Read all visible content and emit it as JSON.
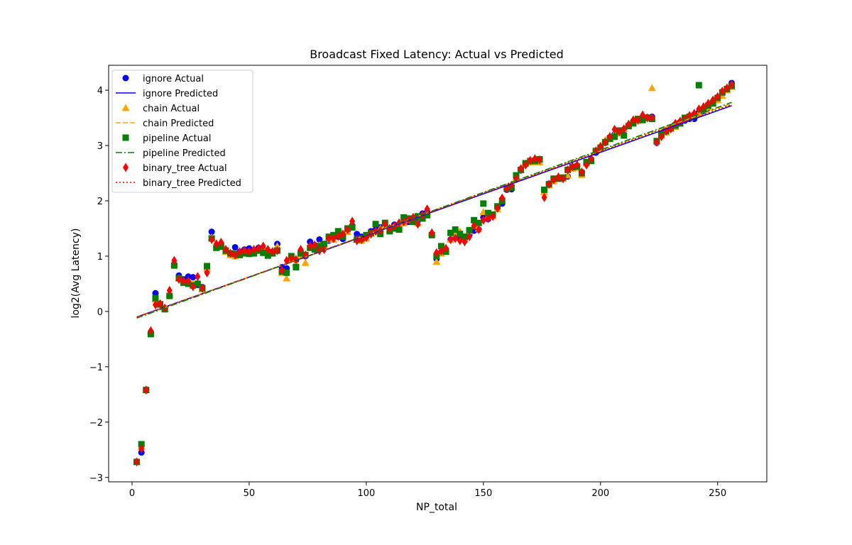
{
  "chart_data": {
    "type": "scatter",
    "title": "Broadcast Fixed Latency: Actual vs Predicted",
    "xlabel": "NP_total",
    "ylabel": "log2(Avg Latency)",
    "xlim": [
      -10,
      271
    ],
    "ylim": [
      -3.08,
      4.45
    ],
    "xticks": [
      0,
      50,
      100,
      150,
      200,
      250
    ],
    "yticks": [
      -3,
      -2,
      -1,
      0,
      1,
      2,
      3,
      4
    ],
    "xtick_labels": [
      "0",
      "50",
      "100",
      "150",
      "200",
      "250"
    ],
    "ytick_labels": [
      "−3",
      "−2",
      "−1",
      "0",
      "1",
      "2",
      "3",
      "4"
    ],
    "grid": false,
    "legend_position": "upper-left",
    "legend": [
      {
        "label": "ignore Actual",
        "marker": "circle",
        "color": "#0000ff"
      },
      {
        "label": "ignore Predicted",
        "line": "solid",
        "color": "#0000ff"
      },
      {
        "label": "chain Actual",
        "marker": "triangle",
        "color": "#ffa500"
      },
      {
        "label": "chain Predicted",
        "line": "dashed",
        "color": "#ffa500"
      },
      {
        "label": "pipeline Actual",
        "marker": "square",
        "color": "#008000"
      },
      {
        "label": "pipeline Predicted",
        "line": "dashdot",
        "color": "#008000"
      },
      {
        "label": "binary_tree Actual",
        "marker": "diamond",
        "color": "#ff0000"
      },
      {
        "label": "binary_tree Predicted",
        "line": "dotted",
        "color": "#ff0000"
      }
    ],
    "predicted_lines": [
      {
        "name": "ignore Predicted",
        "color": "#0000ff",
        "style": "solid",
        "x": [
          2,
          256
        ],
        "y": [
          -0.1,
          3.72
        ]
      },
      {
        "name": "chain Predicted",
        "color": "#ffa500",
        "style": "dashed",
        "x": [
          2,
          256
        ],
        "y": [
          -0.11,
          3.76
        ]
      },
      {
        "name": "pipeline Predicted",
        "color": "#008000",
        "style": "dashdot",
        "x": [
          2,
          256
        ],
        "y": [
          -0.12,
          3.78
        ]
      },
      {
        "name": "binary_tree Predicted",
        "color": "#ff0000",
        "style": "dotted",
        "x": [
          2,
          256
        ],
        "y": [
          -0.1,
          3.74
        ]
      }
    ],
    "series": [
      {
        "name": "ignore Actual",
        "marker": "circle",
        "color": "#0000ff",
        "x": [
          2,
          4,
          6,
          8,
          10,
          12,
          14,
          16,
          18,
          20,
          22,
          24,
          26,
          28,
          30,
          32,
          34,
          36,
          38,
          40,
          42,
          44,
          46,
          48,
          50,
          52,
          54,
          56,
          58,
          60,
          62,
          64,
          66,
          68,
          70,
          72,
          74,
          76,
          78,
          80,
          82,
          84,
          86,
          88,
          90,
          92,
          94,
          96,
          98,
          100,
          102,
          104,
          106,
          108,
          110,
          112,
          114,
          116,
          118,
          120,
          122,
          124,
          126,
          128,
          130,
          132,
          134,
          136,
          138,
          140,
          142,
          144,
          146,
          148,
          150,
          152,
          154,
          156,
          158,
          160,
          162,
          164,
          166,
          168,
          170,
          172,
          174,
          176,
          178,
          180,
          182,
          184,
          186,
          188,
          190,
          192,
          194,
          196,
          198,
          200,
          202,
          204,
          206,
          208,
          210,
          212,
          214,
          216,
          218,
          220,
          222,
          224,
          226,
          228,
          230,
          232,
          234,
          236,
          238,
          240,
          242,
          244,
          246,
          248,
          250,
          252,
          254,
          256
        ],
        "y": [
          -2.72,
          -2.55,
          -1.42,
          -0.38,
          0.33,
          0.13,
          0.05,
          0.28,
          0.85,
          0.65,
          0.58,
          0.63,
          0.62,
          0.48,
          0.44,
          0.75,
          1.44,
          1.18,
          1.22,
          1.1,
          1.05,
          1.16,
          1.08,
          1.12,
          1.14,
          1.1,
          1.15,
          1.12,
          1.06,
          1.08,
          1.22,
          0.8,
          0.78,
          0.95,
          0.93,
          1.08,
          1.0,
          1.26,
          1.2,
          1.3,
          1.18,
          1.28,
          1.38,
          1.35,
          1.31,
          1.46,
          1.55,
          1.4,
          1.35,
          1.38,
          1.45,
          1.48,
          1.52,
          1.55,
          1.5,
          1.57,
          1.56,
          1.6,
          1.62,
          1.66,
          1.64,
          1.77,
          1.8,
          1.4,
          0.95,
          1.07,
          1.12,
          1.3,
          1.38,
          1.31,
          1.3,
          1.38,
          1.46,
          1.48,
          1.7,
          1.67,
          1.72,
          1.87,
          1.95,
          2.2,
          2.21,
          2.42,
          2.55,
          2.66,
          2.7,
          2.72,
          2.73,
          2.2,
          2.31,
          2.36,
          2.41,
          2.4,
          2.44,
          2.6,
          2.62,
          2.52,
          2.7,
          2.75,
          2.87,
          2.95,
          3.05,
          3.15,
          3.2,
          3.25,
          3.29,
          3.36,
          3.44,
          3.46,
          3.5,
          3.51,
          3.52,
          3.05,
          3.22,
          3.25,
          3.33,
          3.35,
          3.42,
          3.45,
          3.48,
          3.48,
          3.6,
          3.62,
          3.7,
          3.78,
          3.86,
          3.94,
          4.03,
          4.13
        ]
      },
      {
        "name": "chain Actual",
        "marker": "triangle",
        "color": "#ffa500",
        "x": [
          2,
          4,
          6,
          8,
          10,
          12,
          14,
          16,
          18,
          20,
          22,
          24,
          26,
          28,
          30,
          32,
          34,
          36,
          38,
          40,
          42,
          44,
          46,
          48,
          50,
          52,
          54,
          56,
          58,
          60,
          62,
          64,
          66,
          68,
          70,
          72,
          74,
          76,
          78,
          80,
          82,
          84,
          86,
          88,
          90,
          92,
          94,
          96,
          98,
          100,
          102,
          104,
          106,
          108,
          110,
          112,
          114,
          116,
          118,
          120,
          122,
          124,
          126,
          128,
          130,
          132,
          134,
          136,
          138,
          140,
          142,
          144,
          146,
          148,
          150,
          152,
          154,
          156,
          158,
          160,
          162,
          164,
          166,
          168,
          170,
          172,
          174,
          176,
          178,
          180,
          182,
          184,
          186,
          188,
          190,
          192,
          194,
          196,
          198,
          200,
          202,
          204,
          206,
          208,
          210,
          212,
          214,
          216,
          218,
          220,
          222,
          224,
          226,
          228,
          230,
          232,
          234,
          236,
          238,
          240,
          242,
          244,
          246,
          248,
          250,
          252,
          254,
          256
        ],
        "y": [
          -2.72,
          -2.45,
          -1.42,
          -0.36,
          0.22,
          0.12,
          0.05,
          0.3,
          0.86,
          0.6,
          0.55,
          0.55,
          0.5,
          0.5,
          0.4,
          0.78,
          1.34,
          1.2,
          1.22,
          1.08,
          1.02,
          1.0,
          1.08,
          1.1,
          1.06,
          1.08,
          1.12,
          1.14,
          1.1,
          1.1,
          1.18,
          0.7,
          0.6,
          0.95,
          0.88,
          1.02,
          0.88,
          1.15,
          1.18,
          1.2,
          1.18,
          1.3,
          1.3,
          1.38,
          1.4,
          1.44,
          1.55,
          1.3,
          1.28,
          1.32,
          1.4,
          1.45,
          1.5,
          1.55,
          1.48,
          1.52,
          1.56,
          1.6,
          1.65,
          1.67,
          1.6,
          1.7,
          1.8,
          1.42,
          0.9,
          1.05,
          1.08,
          1.3,
          1.4,
          1.45,
          1.3,
          1.45,
          1.55,
          1.5,
          1.8,
          1.72,
          1.72,
          1.85,
          2.0,
          2.25,
          2.25,
          2.42,
          2.56,
          2.67,
          2.7,
          2.7,
          2.7,
          2.16,
          2.28,
          2.36,
          2.4,
          2.4,
          2.46,
          2.58,
          2.6,
          2.47,
          2.68,
          2.74,
          2.92,
          3.0,
          3.1,
          3.12,
          3.22,
          3.22,
          3.3,
          3.4,
          3.46,
          3.45,
          3.52,
          3.5,
          4.04,
          3.07,
          3.18,
          3.24,
          3.3,
          3.34,
          3.4,
          3.48,
          3.5,
          3.54,
          3.58,
          3.64,
          3.7,
          3.76,
          3.82,
          3.9,
          4.0,
          4.06
        ]
      },
      {
        "name": "pipeline Actual",
        "marker": "square",
        "color": "#008000",
        "x": [
          2,
          4,
          6,
          8,
          10,
          12,
          14,
          16,
          18,
          20,
          22,
          24,
          26,
          28,
          30,
          32,
          34,
          36,
          38,
          40,
          42,
          44,
          46,
          48,
          50,
          52,
          54,
          56,
          58,
          60,
          62,
          64,
          66,
          68,
          70,
          72,
          74,
          76,
          78,
          80,
          82,
          84,
          86,
          88,
          90,
          92,
          94,
          96,
          98,
          100,
          102,
          104,
          106,
          108,
          110,
          112,
          114,
          116,
          118,
          120,
          122,
          124,
          126,
          128,
          130,
          132,
          134,
          136,
          138,
          140,
          142,
          144,
          146,
          148,
          150,
          152,
          154,
          156,
          158,
          160,
          162,
          164,
          166,
          168,
          170,
          172,
          174,
          176,
          178,
          180,
          182,
          184,
          186,
          188,
          190,
          192,
          194,
          196,
          198,
          200,
          202,
          204,
          206,
          208,
          210,
          212,
          214,
          216,
          218,
          220,
          222,
          224,
          226,
          228,
          230,
          232,
          234,
          236,
          238,
          240,
          242,
          244,
          246,
          248,
          250,
          252,
          254,
          256
        ],
        "y": [
          -2.72,
          -2.4,
          -1.42,
          -0.41,
          0.24,
          0.13,
          0.04,
          0.28,
          0.83,
          0.6,
          0.52,
          0.5,
          0.47,
          0.5,
          0.42,
          0.82,
          1.32,
          1.15,
          1.17,
          1.1,
          1.05,
          1.04,
          1.02,
          1.05,
          1.04,
          1.05,
          1.1,
          1.06,
          1.01,
          1.05,
          1.1,
          0.72,
          0.7,
          1.0,
          0.8,
          1.05,
          1.02,
          1.15,
          1.12,
          1.18,
          1.22,
          1.35,
          1.38,
          1.45,
          1.35,
          1.5,
          1.52,
          1.3,
          1.32,
          1.38,
          1.42,
          1.58,
          1.4,
          1.6,
          1.45,
          1.5,
          1.48,
          1.7,
          1.68,
          1.62,
          1.72,
          1.68,
          1.74,
          1.38,
          1.0,
          1.18,
          1.08,
          1.42,
          1.48,
          1.4,
          1.35,
          1.47,
          1.65,
          1.6,
          1.95,
          1.78,
          1.75,
          1.9,
          2.0,
          2.22,
          2.24,
          2.46,
          2.56,
          2.68,
          2.72,
          2.72,
          2.75,
          2.2,
          2.3,
          2.4,
          2.4,
          2.42,
          2.56,
          2.61,
          2.62,
          2.5,
          2.7,
          2.72,
          2.9,
          2.96,
          3.06,
          3.12,
          3.16,
          3.27,
          3.18,
          3.35,
          3.4,
          3.48,
          3.46,
          3.5,
          3.48,
          3.08,
          3.2,
          3.26,
          3.32,
          3.36,
          3.4,
          3.5,
          3.52,
          3.54,
          4.09,
          3.65,
          3.72,
          3.76,
          3.86,
          3.96,
          4.02,
          4.08
        ]
      },
      {
        "name": "binary_tree Actual",
        "marker": "diamond",
        "color": "#ff0000",
        "x": [
          2,
          4,
          6,
          8,
          10,
          12,
          14,
          16,
          18,
          20,
          22,
          24,
          26,
          28,
          30,
          32,
          34,
          36,
          38,
          40,
          42,
          44,
          46,
          48,
          50,
          52,
          54,
          56,
          58,
          60,
          62,
          64,
          66,
          68,
          70,
          72,
          74,
          76,
          78,
          80,
          82,
          84,
          86,
          88,
          90,
          92,
          94,
          96,
          98,
          100,
          102,
          104,
          106,
          108,
          110,
          112,
          114,
          116,
          118,
          120,
          122,
          124,
          126,
          128,
          130,
          132,
          134,
          136,
          138,
          140,
          142,
          144,
          146,
          148,
          150,
          152,
          154,
          156,
          158,
          160,
          162,
          164,
          166,
          168,
          170,
          172,
          174,
          176,
          178,
          180,
          182,
          184,
          186,
          188,
          190,
          192,
          194,
          196,
          198,
          200,
          202,
          204,
          206,
          208,
          210,
          212,
          214,
          216,
          218,
          220,
          222,
          224,
          226,
          228,
          230,
          232,
          234,
          236,
          238,
          240,
          242,
          244,
          246,
          248,
          250,
          252,
          254,
          256
        ],
        "y": [
          -2.72,
          -2.48,
          -1.42,
          -0.35,
          0.12,
          0.14,
          0.06,
          0.38,
          0.92,
          0.58,
          0.55,
          0.55,
          0.45,
          0.63,
          0.42,
          0.7,
          1.3,
          1.22,
          1.25,
          1.12,
          1.05,
          1.02,
          1.08,
          1.1,
          1.08,
          1.12,
          1.14,
          1.18,
          1.12,
          1.08,
          1.1,
          0.74,
          0.92,
          0.96,
          0.94,
          1.12,
          1.02,
          1.18,
          1.2,
          1.1,
          1.12,
          1.32,
          1.32,
          1.36,
          1.4,
          1.48,
          1.63,
          1.28,
          1.3,
          1.34,
          1.4,
          1.45,
          1.46,
          1.58,
          1.5,
          1.55,
          1.6,
          1.62,
          1.66,
          1.7,
          1.58,
          1.74,
          1.85,
          1.42,
          1.06,
          1.09,
          1.14,
          1.3,
          1.32,
          1.28,
          1.26,
          1.35,
          1.55,
          1.48,
          1.65,
          1.68,
          1.72,
          1.87,
          2.05,
          2.22,
          2.28,
          2.4,
          2.58,
          2.65,
          2.73,
          2.76,
          2.74,
          2.06,
          2.3,
          2.38,
          2.43,
          2.4,
          2.56,
          2.62,
          2.65,
          2.52,
          2.65,
          2.76,
          2.9,
          2.98,
          3.06,
          3.16,
          3.29,
          3.25,
          3.3,
          3.38,
          3.46,
          3.46,
          3.55,
          3.5,
          3.5,
          3.06,
          3.16,
          3.26,
          3.3,
          3.4,
          3.44,
          3.48,
          3.54,
          3.58,
          3.66,
          3.7,
          3.76,
          3.82,
          3.88,
          3.98,
          4.04,
          4.1
        ]
      }
    ]
  }
}
